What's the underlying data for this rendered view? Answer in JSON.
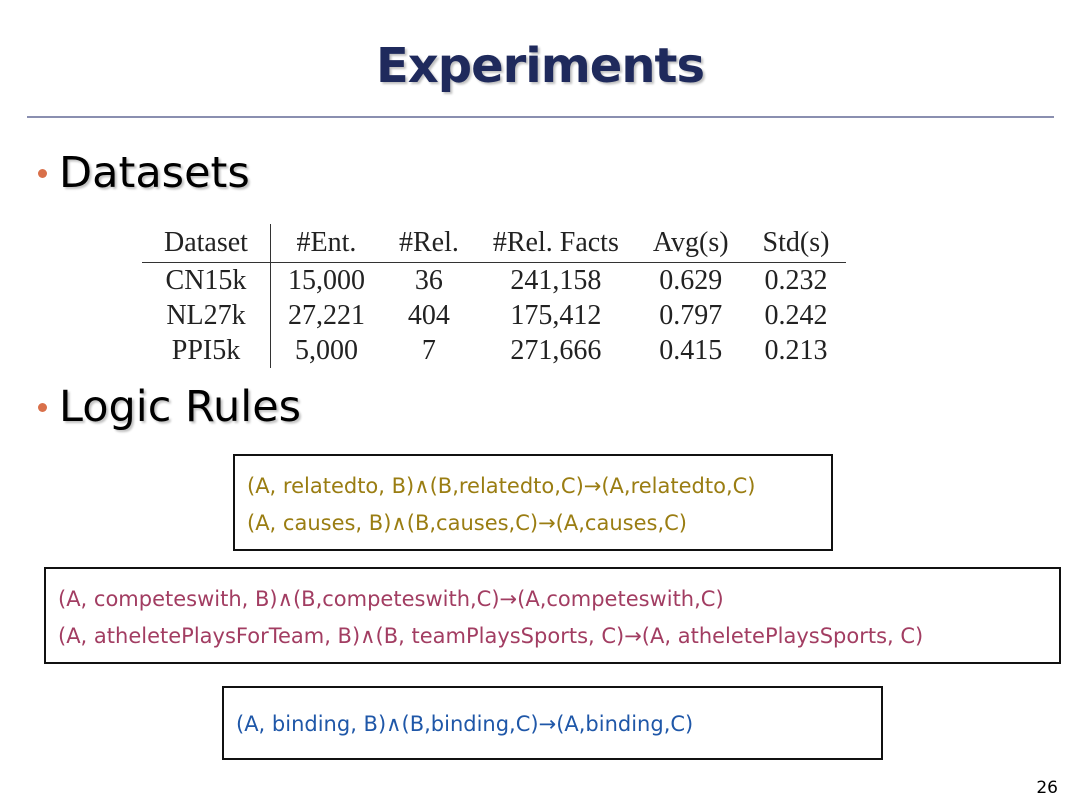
{
  "slide": {
    "title": "Experiments",
    "page_number": "26"
  },
  "bullets": [
    {
      "label": "Datasets"
    },
    {
      "label": "Logic Rules"
    }
  ],
  "table": {
    "headers": [
      "Dataset",
      "#Ent.",
      "#Rel.",
      "#Rel. Facts",
      "Avg(s)",
      "Std(s)"
    ],
    "rows": [
      [
        "CN15k",
        "15,000",
        "36",
        "241,158",
        "0.629",
        "0.232"
      ],
      [
        "NL27k",
        "27,221",
        "404",
        "175,412",
        "0.797",
        "0.242"
      ],
      [
        "PPI5k",
        "5,000",
        "7",
        "271,666",
        "0.415",
        "0.213"
      ]
    ]
  },
  "rule_boxes": [
    {
      "color": "#9a7d12",
      "rules": [
        "(A, relatedto, B)∧(B,relatedto,C)→(A,relatedto,C)",
        "(A, causes, B)∧(B,causes,C)→(A,causes,C)"
      ]
    },
    {
      "color": "#a23d62",
      "rules": [
        "(A, competeswith, B)∧(B,competeswith,C)→(A,competeswith,C)",
        "(A, atheletePlaysForTeam, B)∧(B, teamPlaysSports, C)→(A, atheletePlaysSports, C)"
      ]
    },
    {
      "color": "#1f57a8",
      "rules": [
        "(A, binding, B)∧(B,binding,C)→(A,binding,C)"
      ]
    }
  ]
}
